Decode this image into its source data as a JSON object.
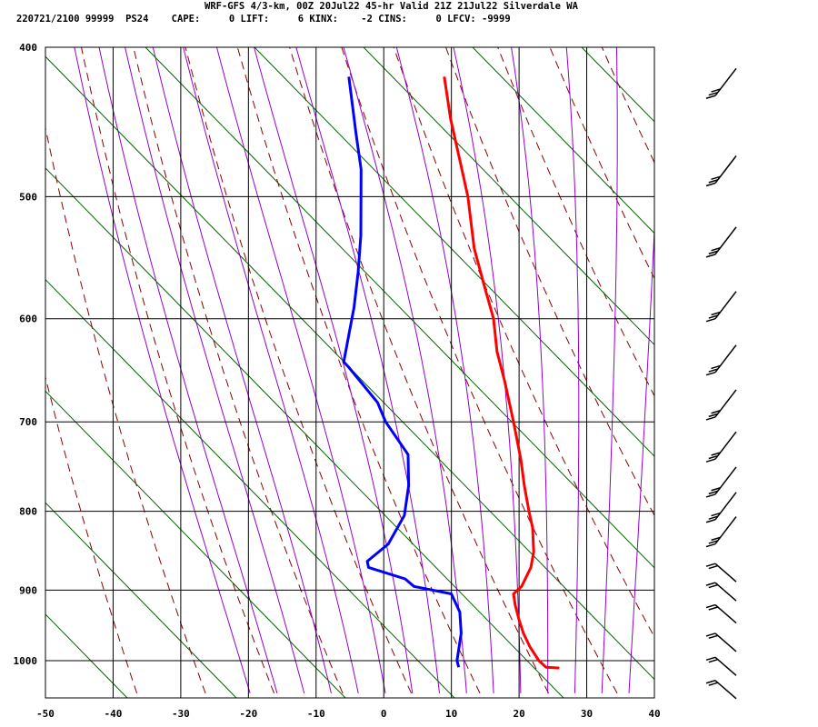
{
  "header": {
    "line1": "WRF-GFS 4/3-km, 00Z 20Jul22 45-hr Valid 21Z 21Jul22 Silverdale WA",
    "line2": "220721/2100 99999  PS24    CAPE:     0 LIFT:     6 KINX:    -2 CINS:     0 LFCV: -9999"
  },
  "colors": {
    "temperature": "#ff0000",
    "dewpoint": "#0000ff",
    "dry_adiabat": "#8b0000",
    "moist_adiabat": "#9400d3",
    "mixing_ratio": "#006400",
    "grid": "#000000"
  },
  "chart_data": {
    "type": "line",
    "subtype": "skew-T log-P sounding",
    "title": "",
    "xlabel": "",
    "ylabel": "",
    "x_ticks": [
      "-50",
      "-40",
      "-30",
      "-20",
      "-10",
      "0",
      "10",
      "20",
      "30",
      "40"
    ],
    "y_ticks": [
      "400",
      "500",
      "600",
      "700",
      "800",
      "900",
      "1000"
    ],
    "y_scale": "log, inverted",
    "grid": true,
    "background_lines": [
      "dry adiabats (dashed)",
      "moist adiabats",
      "mixing ratio lines"
    ],
    "series": [
      {
        "color": "red",
        "points": [
          {
            "p": 1011,
            "t": 24.4
          },
          {
            "p": 1010,
            "t": 22.4
          },
          {
            "p": 1000,
            "t": 21.0
          },
          {
            "p": 980,
            "t": 19.0
          },
          {
            "p": 960,
            "t": 17.3
          },
          {
            "p": 940,
            "t": 15.9
          },
          {
            "p": 920,
            "t": 14.6
          },
          {
            "p": 905,
            "t": 13.8
          },
          {
            "p": 895,
            "t": 14.6
          },
          {
            "p": 870,
            "t": 15.0
          },
          {
            "p": 850,
            "t": 14.6
          },
          {
            "p": 820,
            "t": 13.2
          },
          {
            "p": 800,
            "t": 11.8
          },
          {
            "p": 770,
            "t": 9.8
          },
          {
            "p": 740,
            "t": 7.9
          },
          {
            "p": 700,
            "t": 4.9
          },
          {
            "p": 660,
            "t": 1.6
          },
          {
            "p": 630,
            "t": -1.2
          },
          {
            "p": 600,
            "t": -3.4
          },
          {
            "p": 570,
            "t": -6.6
          },
          {
            "p": 540,
            "t": -9.9
          },
          {
            "p": 500,
            "t": -13.5
          },
          {
            "p": 470,
            "t": -17.0
          },
          {
            "p": 445,
            "t": -20.1
          },
          {
            "p": 418,
            "t": -23.2
          }
        ]
      },
      {
        "color": "blue",
        "points": [
          {
            "p": 1010,
            "t": 9.5
          },
          {
            "p": 1000,
            "t": 8.9
          },
          {
            "p": 960,
            "t": 8.1
          },
          {
            "p": 930,
            "t": 6.8
          },
          {
            "p": 905,
            "t": 4.6
          },
          {
            "p": 895,
            "t": -1.3
          },
          {
            "p": 885,
            "t": -3.0
          },
          {
            "p": 870,
            "t": -9.0
          },
          {
            "p": 862,
            "t": -9.5
          },
          {
            "p": 840,
            "t": -7.3
          },
          {
            "p": 805,
            "t": -6.4
          },
          {
            "p": 770,
            "t": -7.3
          },
          {
            "p": 735,
            "t": -9.0
          },
          {
            "p": 700,
            "t": -14.0
          },
          {
            "p": 680,
            "t": -16.2
          },
          {
            "p": 645,
            "t": -22.3
          },
          {
            "p": 640,
            "t": -23.3
          },
          {
            "p": 590,
            "t": -24.6
          },
          {
            "p": 560,
            "t": -25.8
          },
          {
            "p": 530,
            "t": -27.3
          },
          {
            "p": 480,
            "t": -30.7
          },
          {
            "p": 455,
            "t": -33.3
          },
          {
            "p": 418,
            "t": -37.3
          }
        ]
      }
    ],
    "wind_barbs": [
      {
        "p": 430
      },
      {
        "p": 490
      },
      {
        "p": 545
      },
      {
        "p": 600
      },
      {
        "p": 650
      },
      {
        "p": 695
      },
      {
        "p": 740
      },
      {
        "p": 780
      },
      {
        "p": 810
      },
      {
        "p": 840
      },
      {
        "p": 865
      },
      {
        "p": 890
      },
      {
        "p": 920
      },
      {
        "p": 960
      },
      {
        "p": 995
      },
      {
        "p": 1030
      }
    ]
  }
}
